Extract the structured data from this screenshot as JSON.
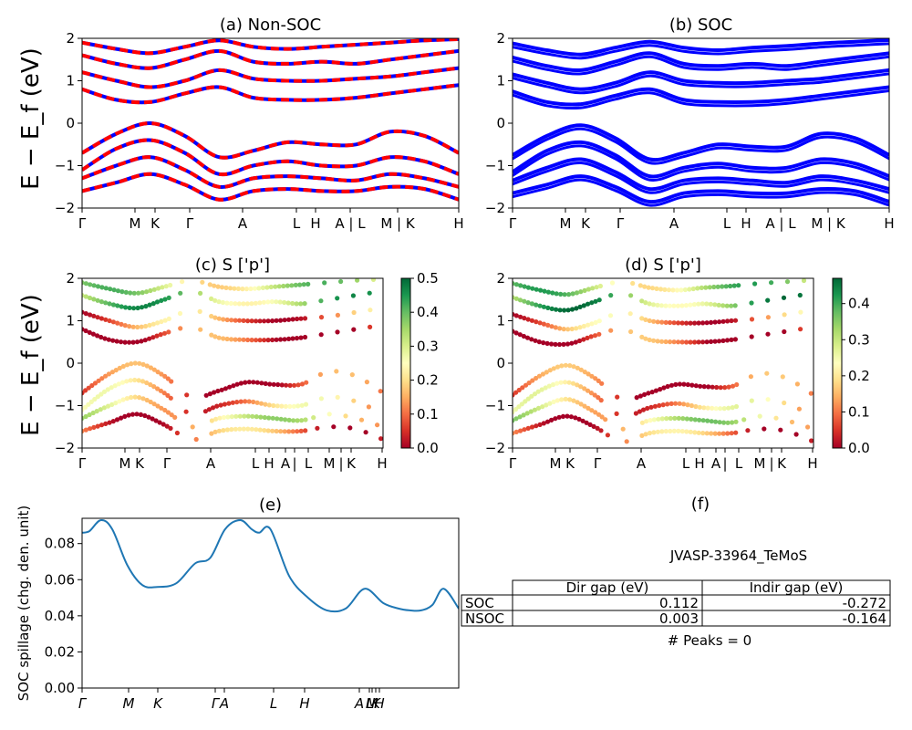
{
  "figure": {
    "shared_ylabel": "E − E_f (eV)",
    "formula_id": "JVASP-33964_TeMoS",
    "peaks_text": "# Peaks = 0"
  },
  "colors": {
    "nonsoc_red": "#ff0000",
    "nonsoc_blue": "#0000ff",
    "soc_blue": "#0000ff",
    "spillage_line": "#1f77b4"
  },
  "chart_data": [
    {
      "id": "a",
      "type": "line",
      "title": "(a) Non-SOC",
      "ylim": [
        -2,
        2
      ],
      "yticks": [
        "2",
        "1",
        "0",
        "−1",
        "−2"
      ],
      "xtick_labels": [
        "Γ",
        "M",
        "K",
        "Γ",
        "A",
        "L",
        "H",
        "A | L",
        "M | K",
        "H"
      ],
      "series": [
        {
          "values": [
            -0.7,
            -0.25,
            0.0,
            -0.3,
            -0.8,
            -0.65,
            -0.45,
            -0.5,
            -0.5,
            -0.2,
            -0.3,
            -0.7
          ]
        },
        {
          "values": [
            -1.1,
            -0.6,
            -0.4,
            -0.7,
            -1.2,
            -1.0,
            -0.9,
            -1.0,
            -1.0,
            -0.8,
            -0.9,
            -1.2
          ]
        },
        {
          "values": [
            -1.3,
            -1.0,
            -0.8,
            -1.1,
            -1.5,
            -1.3,
            -1.25,
            -1.3,
            -1.35,
            -1.2,
            -1.3,
            -1.5
          ]
        },
        {
          "values": [
            -1.6,
            -1.4,
            -1.2,
            -1.45,
            -1.8,
            -1.6,
            -1.55,
            -1.6,
            -1.6,
            -1.5,
            -1.55,
            -1.8
          ]
        },
        {
          "values": [
            0.8,
            0.55,
            0.5,
            0.7,
            0.85,
            0.6,
            0.55,
            0.55,
            0.6,
            0.7,
            0.8,
            0.9
          ]
        },
        {
          "values": [
            1.2,
            1.0,
            0.85,
            1.0,
            1.25,
            1.05,
            1.0,
            1.0,
            1.05,
            1.1,
            1.2,
            1.3
          ]
        },
        {
          "values": [
            1.6,
            1.4,
            1.3,
            1.5,
            1.7,
            1.45,
            1.4,
            1.45,
            1.4,
            1.5,
            1.6,
            1.7
          ]
        },
        {
          "values": [
            1.9,
            1.75,
            1.65,
            1.8,
            1.95,
            1.8,
            1.75,
            1.8,
            1.85,
            1.9,
            1.95,
            1.98
          ]
        }
      ]
    },
    {
      "id": "b",
      "type": "line",
      "title": "(b) SOC",
      "ylim": [
        -2,
        2
      ],
      "yticks": [
        "2",
        "1",
        "0",
        "−1",
        "−2"
      ],
      "xtick_labels": [
        "Γ",
        "M",
        "K",
        "Γ",
        "A",
        "L",
        "H",
        "A | L",
        "M | K",
        "H"
      ],
      "series": [
        {
          "values": [
            -0.75,
            -0.3,
            -0.05,
            -0.35,
            -0.85,
            -0.7,
            -0.5,
            -0.55,
            -0.55,
            -0.25,
            -0.35,
            -0.75
          ]
        },
        {
          "values": [
            -1.15,
            -0.65,
            -0.45,
            -0.75,
            -1.25,
            -1.05,
            -0.95,
            -1.05,
            -1.05,
            -0.85,
            -0.95,
            -1.25
          ]
        },
        {
          "values": [
            -1.35,
            -1.05,
            -0.85,
            -1.15,
            -1.55,
            -1.35,
            -1.3,
            -1.35,
            -1.4,
            -1.25,
            -1.35,
            -1.55
          ]
        },
        {
          "values": [
            -1.65,
            -1.45,
            -1.25,
            -1.5,
            -1.85,
            -1.65,
            -1.6,
            -1.65,
            -1.65,
            -1.55,
            -1.6,
            -1.85
          ]
        },
        {
          "values": [
            0.75,
            0.5,
            0.45,
            0.65,
            0.8,
            0.55,
            0.5,
            0.5,
            0.55,
            0.65,
            0.75,
            0.85
          ]
        },
        {
          "values": [
            1.15,
            0.95,
            0.8,
            0.95,
            1.2,
            1.0,
            0.95,
            0.95,
            1.0,
            1.05,
            1.15,
            1.25
          ]
        },
        {
          "values": [
            1.55,
            1.35,
            1.25,
            1.45,
            1.65,
            1.4,
            1.35,
            1.4,
            1.35,
            1.45,
            1.55,
            1.65
          ]
        },
        {
          "values": [
            1.88,
            1.72,
            1.62,
            1.78,
            1.92,
            1.78,
            1.72,
            1.78,
            1.82,
            1.88,
            1.92,
            1.96
          ]
        }
      ]
    },
    {
      "id": "c",
      "type": "scatter",
      "title": "(c)  S ['p']",
      "ylim": [
        -2,
        2
      ],
      "yticks": [
        "2",
        "1",
        "0",
        "−1",
        "−2"
      ],
      "xtick_labels": [
        "Γ",
        "M",
        "K",
        "Γ",
        "A",
        "L",
        "H",
        "A",
        "|",
        "L",
        "M",
        "|",
        "K",
        "H"
      ],
      "colorbar": {
        "min": 0.0,
        "max": 0.5,
        "ticks": [
          "0.0",
          "0.1",
          "0.2",
          "0.3",
          "0.4",
          "0.5"
        ]
      },
      "series": [
        {
          "values": [
            -0.7,
            -0.25,
            0.0,
            -0.3,
            -0.8,
            -0.65,
            -0.45,
            -0.5,
            -0.5,
            -0.2,
            -0.3,
            -0.7
          ],
          "weight": 0.05
        },
        {
          "values": [
            -1.1,
            -0.6,
            -0.4,
            -0.7,
            -1.2,
            -1.0,
            -0.9,
            -1.0,
            -1.0,
            -0.8,
            -0.9,
            -1.2
          ],
          "weight": 0.15
        },
        {
          "values": [
            -1.3,
            -1.0,
            -0.8,
            -1.1,
            -1.5,
            -1.3,
            -1.25,
            -1.3,
            -1.35,
            -1.2,
            -1.3,
            -1.5
          ],
          "weight": 0.25
        },
        {
          "values": [
            -1.6,
            -1.4,
            -1.2,
            -1.45,
            -1.8,
            -1.6,
            -1.55,
            -1.6,
            -1.6,
            -1.5,
            -1.55,
            -1.8
          ],
          "weight": 0.1
        },
        {
          "values": [
            0.8,
            0.55,
            0.5,
            0.7,
            0.85,
            0.6,
            0.55,
            0.55,
            0.6,
            0.7,
            0.8,
            0.9
          ],
          "weight": 0.05
        },
        {
          "values": [
            1.2,
            1.0,
            0.85,
            1.0,
            1.25,
            1.05,
            1.0,
            1.0,
            1.05,
            1.1,
            1.2,
            1.3
          ],
          "weight": 0.12
        },
        {
          "values": [
            1.6,
            1.4,
            1.3,
            1.5,
            1.7,
            1.45,
            1.4,
            1.45,
            1.4,
            1.5,
            1.6,
            1.7
          ],
          "weight": 0.35
        },
        {
          "values": [
            1.9,
            1.75,
            1.65,
            1.8,
            1.95,
            1.8,
            1.75,
            1.8,
            1.85,
            1.9,
            1.95,
            1.98
          ],
          "weight": 0.3
        }
      ]
    },
    {
      "id": "d",
      "type": "scatter",
      "title": "(d) S ['p']",
      "ylim": [
        -2,
        2
      ],
      "yticks": [
        "2",
        "1",
        "0",
        "−1",
        "−2"
      ],
      "xtick_labels": [
        "Γ",
        "M",
        "K",
        "Γ",
        "A",
        "L",
        "H",
        "A",
        "|",
        "L",
        "M",
        "|",
        "K",
        "H"
      ],
      "colorbar": {
        "min": 0.0,
        "max": 0.47,
        "ticks": [
          "0.0",
          "0.1",
          "0.2",
          "0.3",
          "0.4"
        ]
      },
      "series": [
        {
          "values": [
            -0.75,
            -0.3,
            -0.05,
            -0.35,
            -0.85,
            -0.7,
            -0.5,
            -0.55,
            -0.55,
            -0.25,
            -0.35,
            -0.75
          ],
          "weight": 0.05
        },
        {
          "values": [
            -1.15,
            -0.65,
            -0.45,
            -0.75,
            -1.25,
            -1.05,
            -0.95,
            -1.05,
            -1.05,
            -0.85,
            -0.95,
            -1.25
          ],
          "weight": 0.15
        },
        {
          "values": [
            -1.35,
            -1.05,
            -0.85,
            -1.15,
            -1.55,
            -1.35,
            -1.3,
            -1.35,
            -1.4,
            -1.25,
            -1.35,
            -1.55
          ],
          "weight": 0.25
        },
        {
          "values": [
            -1.65,
            -1.45,
            -1.25,
            -1.5,
            -1.85,
            -1.65,
            -1.6,
            -1.65,
            -1.65,
            -1.55,
            -1.6,
            -1.85
          ],
          "weight": 0.1
        },
        {
          "values": [
            0.75,
            0.5,
            0.45,
            0.65,
            0.8,
            0.55,
            0.5,
            0.5,
            0.55,
            0.65,
            0.75,
            0.85
          ],
          "weight": 0.05
        },
        {
          "values": [
            1.15,
            0.95,
            0.8,
            0.95,
            1.2,
            1.0,
            0.95,
            0.95,
            1.0,
            1.05,
            1.15,
            1.25
          ],
          "weight": 0.12
        },
        {
          "values": [
            1.55,
            1.35,
            1.25,
            1.45,
            1.65,
            1.4,
            1.35,
            1.4,
            1.35,
            1.45,
            1.55,
            1.65
          ],
          "weight": 0.35
        },
        {
          "values": [
            1.88,
            1.72,
            1.62,
            1.78,
            1.92,
            1.78,
            1.72,
            1.78,
            1.82,
            1.88,
            1.92,
            1.96
          ],
          "weight": 0.3
        }
      ]
    },
    {
      "id": "e",
      "type": "line",
      "title": "(e)",
      "ylabel": "SOC spillage (chg. den. unit)",
      "ylim": [
        0.0,
        0.094
      ],
      "yticks": [
        "0.00",
        "0.02",
        "0.04",
        "0.06",
        "0.08"
      ],
      "ytick_values": [
        0.0,
        0.02,
        0.04,
        0.06,
        0.08
      ],
      "xtick_labels": [
        "Γ",
        "M",
        "K",
        "Γ",
        "A",
        "L",
        "H",
        "A",
        "L",
        "M",
        "K",
        "H"
      ],
      "x": [
        0,
        0.02,
        0.05,
        0.08,
        0.12,
        0.16,
        0.2,
        0.25,
        0.3,
        0.34,
        0.38,
        0.42,
        0.45,
        0.47,
        0.5,
        0.55,
        0.6,
        0.65,
        0.7,
        0.75,
        0.8,
        0.84,
        0.87,
        0.9,
        0.93,
        0.96,
        1.0
      ],
      "series": [
        {
          "values": [
            0.086,
            0.087,
            0.093,
            0.088,
            0.068,
            0.057,
            0.056,
            0.058,
            0.069,
            0.072,
            0.088,
            0.093,
            0.088,
            0.086,
            0.088,
            0.062,
            0.05,
            0.043,
            0.044,
            0.055,
            0.047,
            0.044,
            0.043,
            0.043,
            0.046,
            0.055,
            0.044
          ]
        }
      ]
    },
    {
      "id": "f",
      "type": "table",
      "title": "(f)",
      "columns": [
        "",
        "Dir gap (eV)",
        "Indir gap (eV)"
      ],
      "rows": [
        [
          "SOC",
          "0.112",
          "-0.272"
        ],
        [
          "NSOC",
          "0.003",
          "-0.164"
        ]
      ]
    }
  ]
}
